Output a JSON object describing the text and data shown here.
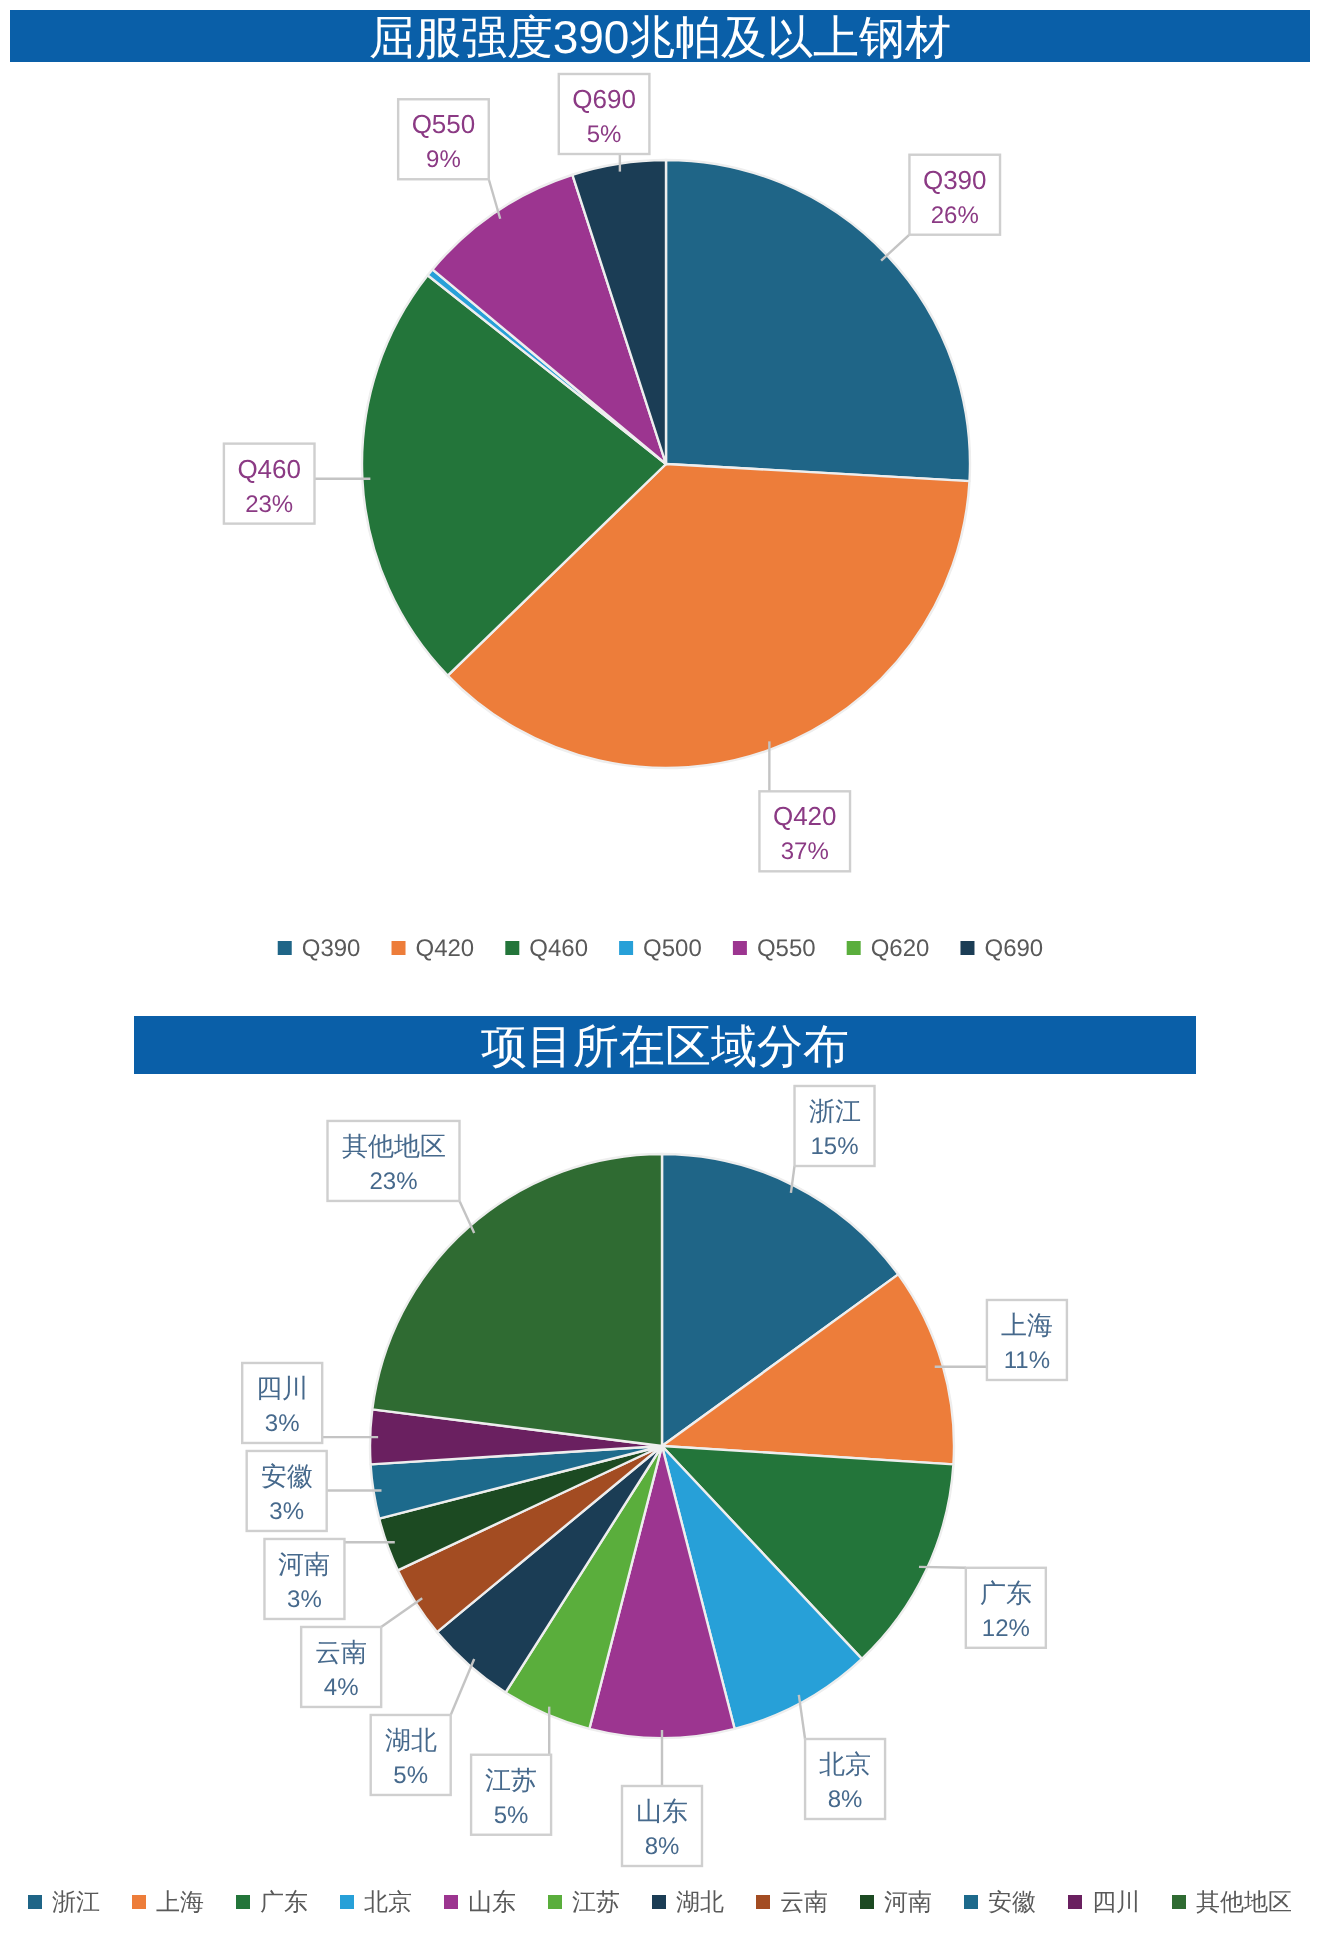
{
  "chart_data": [
    {
      "type": "pie",
      "title": "屈服强度390兆帕及以上钢材",
      "categories": [
        "Q390",
        "Q420",
        "Q460",
        "Q500",
        "Q550",
        "Q620",
        "Q690"
      ],
      "values": [
        26,
        37,
        23,
        0.4,
        9,
        0,
        5
      ],
      "colors": [
        "#1f6587",
        "#ed7d3a",
        "#23753a",
        "#27a0d8",
        "#9c3590",
        "#5aae3c",
        "#1b3d55"
      ],
      "value_labels": [
        "26%",
        "37%",
        "23%",
        null,
        "9%",
        null,
        "5%"
      ],
      "legend": "bottom"
    },
    {
      "type": "pie",
      "title": "项目所在区域分布",
      "categories": [
        "浙江",
        "上海",
        "广东",
        "北京",
        "山东",
        "江苏",
        "湖北",
        "云南",
        "河南",
        "安徽",
        "四川",
        "其他地区"
      ],
      "values": [
        15,
        11,
        12,
        8,
        8,
        5,
        5,
        4,
        3,
        3,
        3,
        23
      ],
      "colors": [
        "#1f6587",
        "#ed7d3a",
        "#23753a",
        "#27a0d8",
        "#9c3590",
        "#5aae3c",
        "#1b3d55",
        "#a34c22",
        "#1c4a22",
        "#1d6a8c",
        "#6a2060",
        "#2f6b32"
      ],
      "value_labels": [
        "15%",
        "11%",
        "12%",
        "8%",
        "8%",
        "5%",
        "5%",
        "4%",
        "3%",
        "3%",
        "3%",
        "23%"
      ],
      "legend": "bottom"
    }
  ]
}
